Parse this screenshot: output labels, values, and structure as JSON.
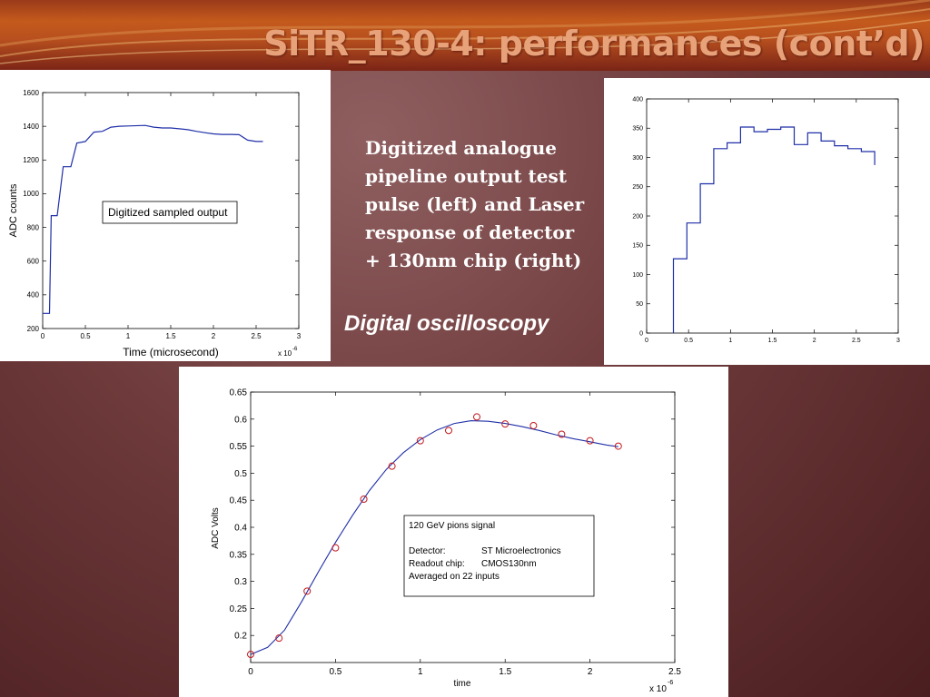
{
  "slide": {
    "title": "SiTR_130-4: performances (cont’d)",
    "description": [
      "Digitized analogue",
      "pipeline output test",
      "pulse (left) and Laser",
      "response of detector",
      "+ 130nm chip (right)"
    ],
    "oscilloscopy_label": "Digital oscilloscopy"
  },
  "chart_data": [
    {
      "type": "line",
      "xlabel": "Time (microsecond)",
      "ylabel": "ADC counts",
      "x_multiplier": "x 10",
      "x_multiplier_exp": "-6",
      "xlim": [
        0,
        3
      ],
      "ylim": [
        200,
        1600
      ],
      "xticks": [
        0,
        0.5,
        1,
        1.5,
        2,
        2.5,
        3
      ],
      "xtick_labels": [
        "0",
        "0.5",
        "1",
        "1.5",
        "2",
        "2.5",
        "3"
      ],
      "yticks": [
        200,
        400,
        600,
        800,
        1000,
        1200,
        1400,
        1600
      ],
      "ytick_labels": [
        "200",
        "400",
        "600",
        "800",
        "1000",
        "1200",
        "1400",
        "1600"
      ],
      "legend": "Digitized sampled output",
      "series": [
        {
          "x": [
            0,
            0.08,
            0.1,
            0.17,
            0.24,
            0.33,
            0.4,
            0.5,
            0.6,
            0.7,
            0.8,
            0.9,
            1.0,
            1.2,
            1.3,
            1.4,
            1.5,
            1.6,
            1.7,
            1.8,
            1.9,
            2.0,
            2.1,
            2.2,
            2.3,
            2.4,
            2.5,
            2.58
          ],
          "y": [
            290,
            290,
            870,
            870,
            1160,
            1160,
            1300,
            1310,
            1365,
            1370,
            1395,
            1400,
            1402,
            1405,
            1395,
            1390,
            1390,
            1385,
            1380,
            1370,
            1362,
            1355,
            1352,
            1352,
            1350,
            1318,
            1310,
            1310
          ]
        }
      ]
    },
    {
      "type": "line",
      "xlim": [
        0,
        3
      ],
      "ylim": [
        0,
        400
      ],
      "xticks": [
        0,
        0.5,
        1,
        1.5,
        2,
        2.5,
        3
      ],
      "xtick_labels": [
        "0",
        "0.5",
        "1",
        "1.5",
        "2",
        "2.5",
        "3"
      ],
      "yticks": [
        0,
        50,
        100,
        150,
        200,
        250,
        300,
        350,
        400
      ],
      "ytick_labels": [
        "0",
        "50",
        "100",
        "150",
        "200",
        "250",
        "300",
        "350",
        "400"
      ],
      "series": [
        {
          "step": true,
          "x": [
            0.32,
            0.32,
            0.48,
            0.48,
            0.64,
            0.64,
            0.8,
            0.8,
            0.96,
            0.96,
            1.12,
            1.12,
            1.28,
            1.28,
            1.44,
            1.44,
            1.6,
            1.6,
            1.76,
            1.76,
            1.92,
            1.92,
            2.08,
            2.08,
            2.24,
            2.24,
            2.4,
            2.4,
            2.56,
            2.56,
            2.72,
            2.72
          ],
          "y": [
            0,
            127,
            127,
            188,
            188,
            255,
            255,
            315,
            315,
            325,
            325,
            352,
            352,
            344,
            344,
            348,
            348,
            352,
            352,
            322,
            322,
            342,
            342,
            328,
            328,
            320,
            320,
            315,
            315,
            310,
            310,
            287
          ]
        }
      ]
    },
    {
      "type": "scatter",
      "xlabel": "time",
      "ylabel": "ADC Volts",
      "x_multiplier": "x 10",
      "x_multiplier_exp": "-6",
      "xlim": [
        0,
        2.5
      ],
      "ylim": [
        0.15,
        0.65
      ],
      "xticks": [
        0,
        0.5,
        1,
        1.5,
        2,
        2.5
      ],
      "xtick_labels": [
        "0",
        "0.5",
        "1",
        "1.5",
        "2",
        "2.5"
      ],
      "yticks": [
        0.2,
        0.25,
        0.3,
        0.35,
        0.4,
        0.45,
        0.5,
        0.55,
        0.6,
        0.65
      ],
      "ytick_labels": [
        "0.2",
        "0.25",
        "0.3",
        "0.35",
        "0.4",
        "0.45",
        "0.5",
        "0.55",
        "0.6",
        "0.65"
      ],
      "points": {
        "x": [
          0,
          0.167,
          0.333,
          0.5,
          0.667,
          0.833,
          1.0,
          1.167,
          1.333,
          1.5,
          1.667,
          1.833,
          2.0,
          2.167
        ],
        "y": [
          0.165,
          0.195,
          0.282,
          0.362,
          0.452,
          0.513,
          0.56,
          0.579,
          0.604,
          0.591,
          0.588,
          0.572,
          0.56,
          0.55
        ]
      },
      "fit": {
        "x": [
          0,
          0.1,
          0.2,
          0.3,
          0.4,
          0.5,
          0.6,
          0.7,
          0.8,
          0.9,
          1.0,
          1.1,
          1.2,
          1.3,
          1.4,
          1.5,
          1.6,
          1.7,
          1.8,
          1.9,
          2.0,
          2.1,
          2.167
        ],
        "y": [
          0.165,
          0.178,
          0.21,
          0.262,
          0.318,
          0.372,
          0.422,
          0.468,
          0.507,
          0.538,
          0.562,
          0.58,
          0.592,
          0.597,
          0.596,
          0.592,
          0.586,
          0.579,
          0.571,
          0.564,
          0.558,
          0.552,
          0.549
        ]
      },
      "annotation": {
        "title": "120 GeV pions signal",
        "rows": [
          {
            "label": "Detector:",
            "value": "ST Microelectronics"
          },
          {
            "label": "Readout chip:",
            "value": "CMOS130nm"
          }
        ],
        "footer": "Averaged on 22 inputs"
      },
      "colors": {
        "line": "#1f2fa8",
        "marker": "#c2181c"
      }
    }
  ]
}
